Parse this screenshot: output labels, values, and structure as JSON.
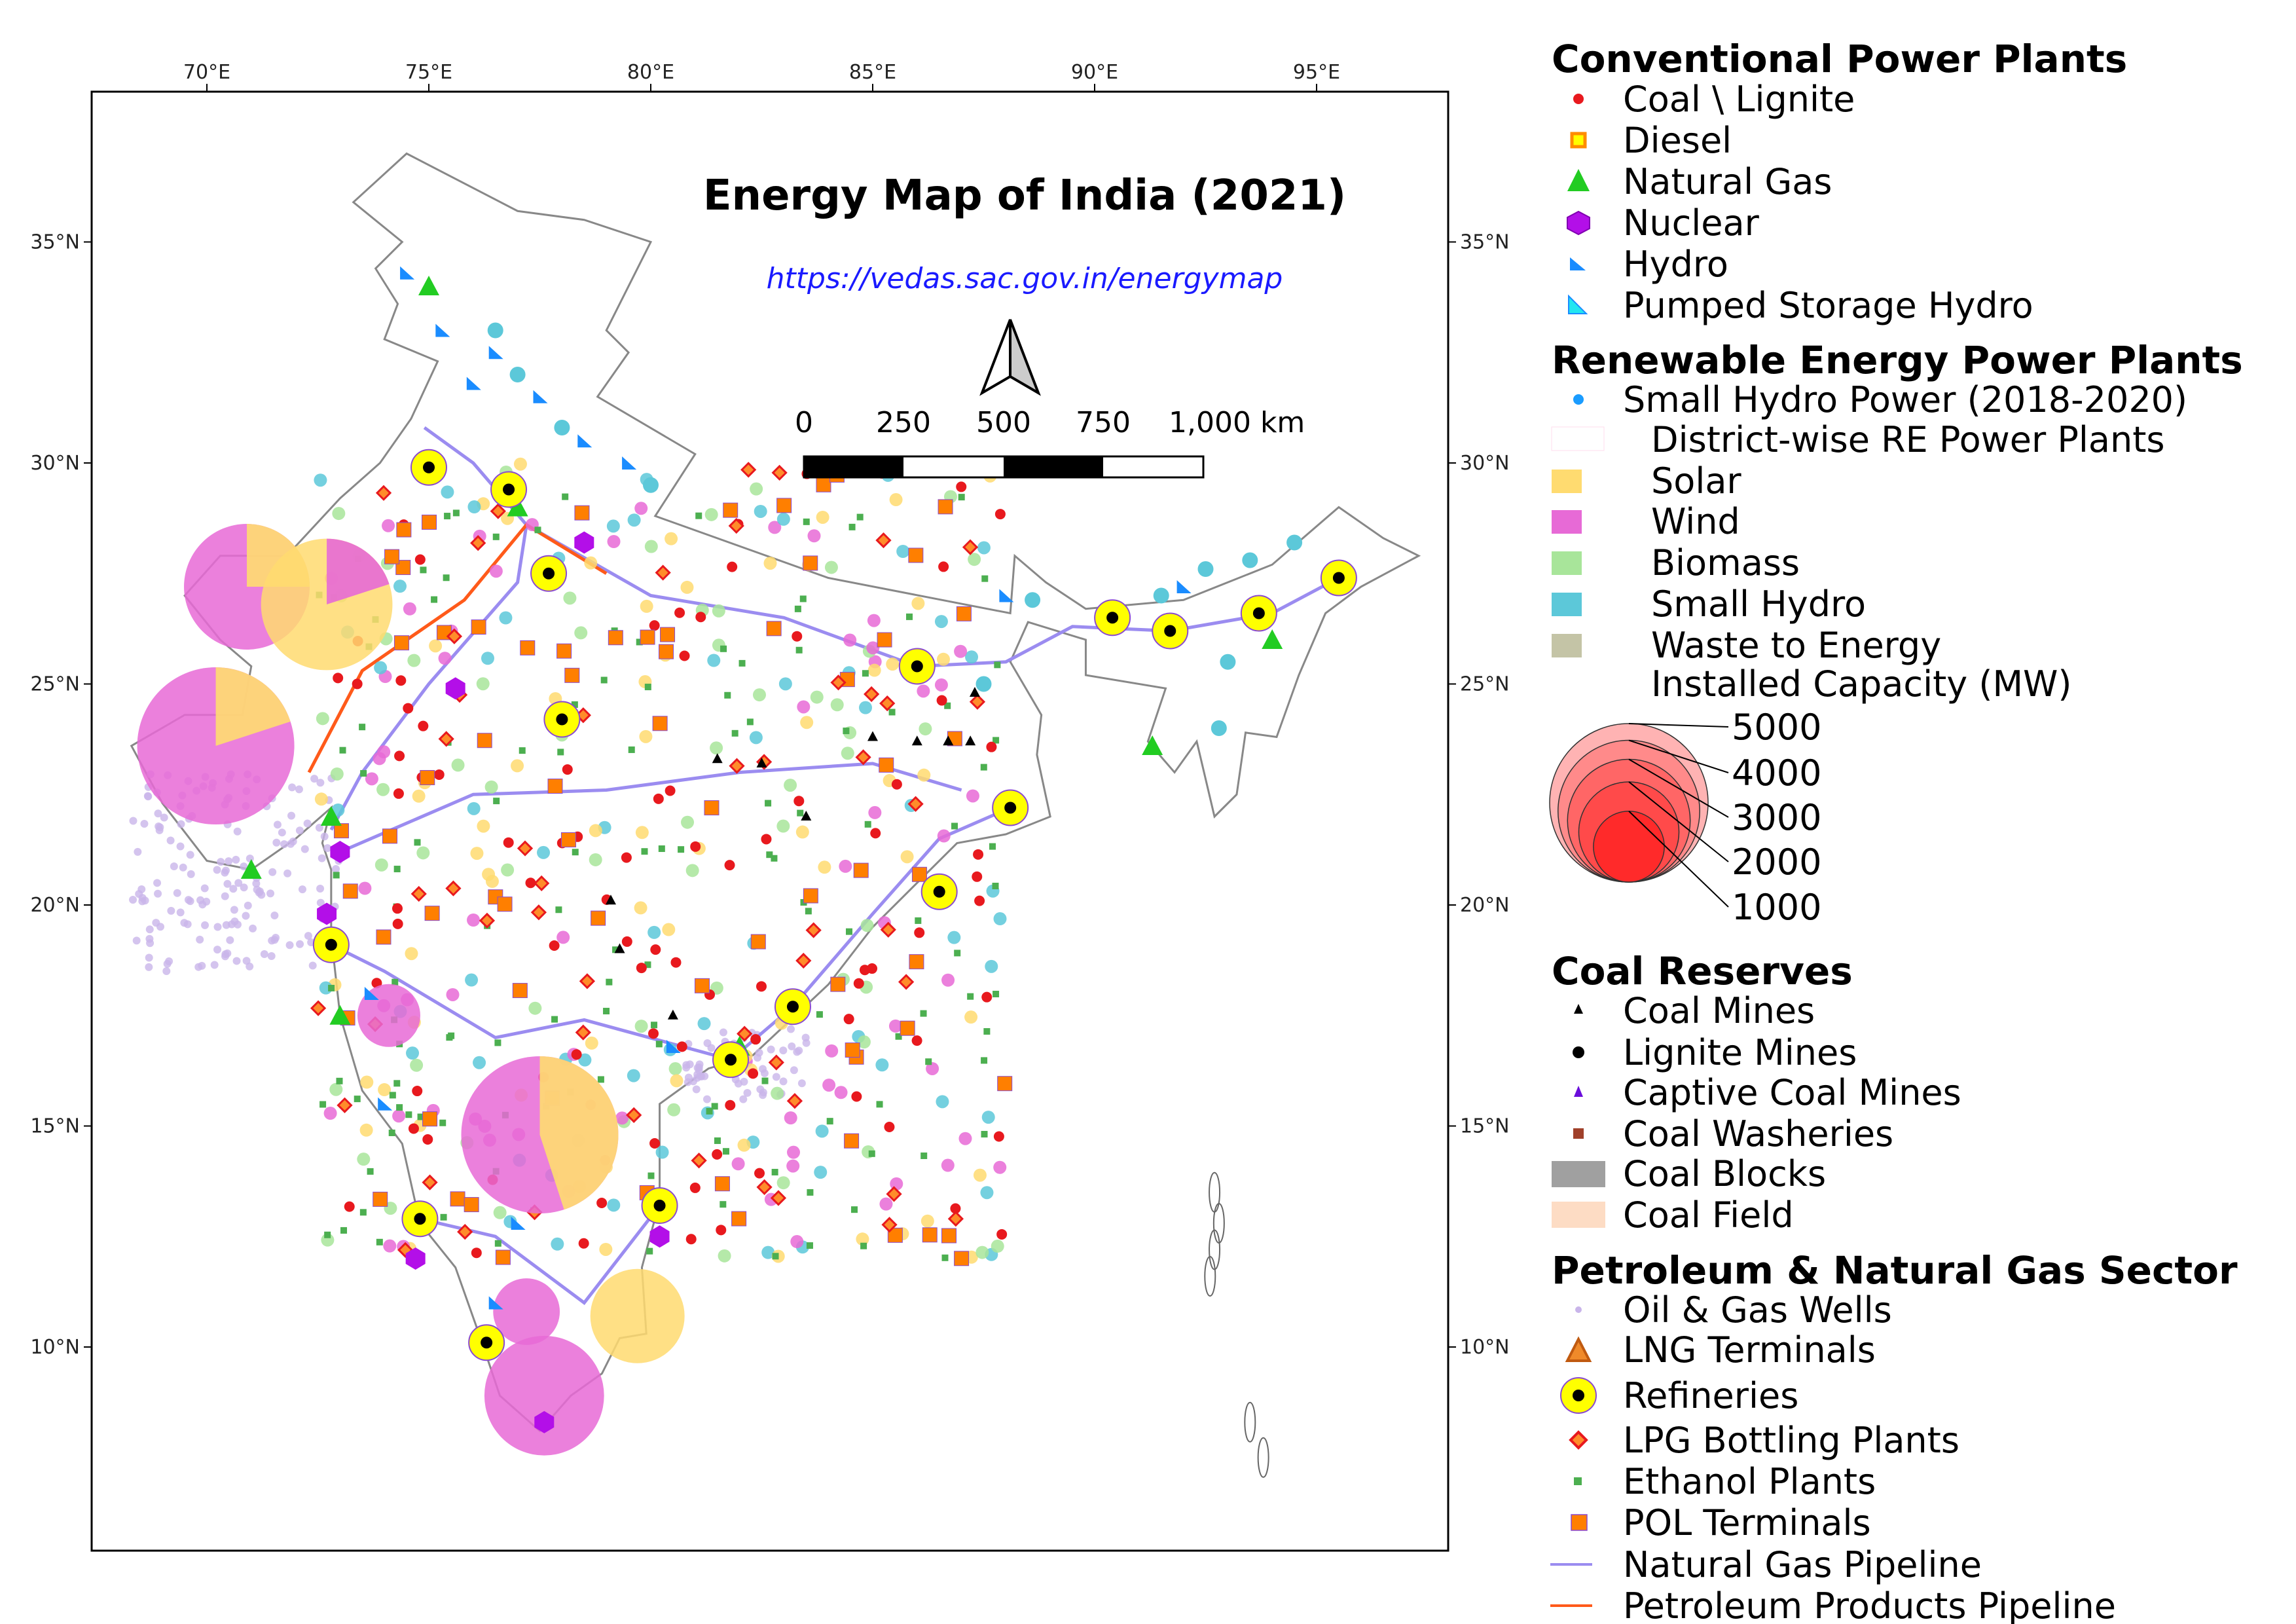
{
  "map": {
    "title": "Energy Map of India (2021)",
    "url": "https://vedas.sac.gov.in/energymap",
    "scale_bar": {
      "labels": [
        "0",
        "250",
        "500",
        "750",
        "1,000 km"
      ]
    },
    "lon_ticks": [
      "70°E",
      "75°E",
      "80°E",
      "85°E",
      "90°E",
      "95°E"
    ],
    "lat_ticks": [
      "35°N",
      "30°N",
      "25°N",
      "20°N",
      "15°N",
      "10°N"
    ],
    "colors": {
      "coal": "#e8191e",
      "diesel": "#ffd500",
      "natural_gas": "#22cc22",
      "nuclear": "#b30fe8",
      "hydro": "#1a8cff",
      "pumped_hydro": "#22e6f0",
      "small_hydro_point": "#1a9cff",
      "solar": "#ffdb70",
      "wind": "#e76ad6",
      "biomass": "#a8e59a",
      "small_hydro": "#5cc8d9",
      "waste": "#c4c4a6",
      "coal_blocks": "#a0a0a0",
      "coal_field": "#fddcc4",
      "oil_gas_wells": "#c9b5ea",
      "lng": "#f08a2a",
      "refinery": "#ffff00",
      "lpg": "#e8191e",
      "ethanol": "#4caf50",
      "pol": "#ff7f00",
      "gas_pipeline": "#9b8cf0",
      "petroleum_pipeline": "#ff5a1a"
    },
    "refineries": [
      [
        75.0,
        29.9
      ],
      [
        76.8,
        29.4
      ],
      [
        77.7,
        27.5
      ],
      [
        78.0,
        24.2
      ],
      [
        86.0,
        25.4
      ],
      [
        90.4,
        26.5
      ],
      [
        91.7,
        26.2
      ],
      [
        93.7,
        26.6
      ],
      [
        95.5,
        27.4
      ],
      [
        88.1,
        22.2
      ],
      [
        86.5,
        20.3
      ],
      [
        83.2,
        17.7
      ],
      [
        81.8,
        16.5
      ],
      [
        72.8,
        19.1
      ],
      [
        74.8,
        12.9
      ],
      [
        80.2,
        13.2
      ],
      [
        76.3,
        10.1
      ]
    ],
    "re_bubbles": [
      {
        "lon": 70.9,
        "lat": 27.2,
        "mw": 3200,
        "type": "wind",
        "solar_share": 0.25
      },
      {
        "lon": 72.7,
        "lat": 26.8,
        "mw": 3500,
        "type": "solar",
        "solar_share": 0.8
      },
      {
        "lon": 70.2,
        "lat": 23.6,
        "mw": 5000,
        "type": "wind",
        "solar_share": 0.2
      },
      {
        "lon": 77.5,
        "lat": 14.8,
        "mw": 5000,
        "type": "wind",
        "solar_share": 0.45
      },
      {
        "lon": 77.6,
        "lat": 8.9,
        "mw": 2900,
        "type": "wind",
        "solar_share": 0.0
      },
      {
        "lon": 79.7,
        "lat": 10.7,
        "mw": 1800,
        "type": "solar",
        "solar_share": 1.0
      },
      {
        "lon": 74.1,
        "lat": 17.5,
        "mw": 800,
        "type": "wind",
        "solar_share": 0.0
      },
      {
        "lon": 77.2,
        "lat": 10.8,
        "mw": 900,
        "type": "wind",
        "solar_share": 0.0
      }
    ],
    "coal_mines": [
      [
        85.0,
        23.8
      ],
      [
        86.0,
        23.7
      ],
      [
        86.7,
        23.7
      ],
      [
        87.2,
        23.7
      ],
      [
        81.5,
        23.3
      ],
      [
        82.5,
        23.2
      ],
      [
        79.1,
        20.1
      ],
      [
        79.3,
        19.0
      ],
      [
        80.5,
        17.5
      ],
      [
        83.5,
        22.0
      ],
      [
        87.3,
        24.8
      ]
    ],
    "hydro": [
      [
        74.5,
        34.3
      ],
      [
        75.3,
        33.0
      ],
      [
        76.5,
        32.5
      ],
      [
        77.5,
        31.5
      ],
      [
        78.5,
        30.5
      ],
      [
        79.5,
        30.0
      ],
      [
        76.0,
        31.8
      ],
      [
        92.0,
        27.2
      ],
      [
        74.0,
        15.5
      ],
      [
        76.5,
        11.0
      ],
      [
        73.7,
        18.0
      ],
      [
        77.0,
        12.8
      ],
      [
        80.5,
        16.8
      ],
      [
        88.0,
        27.0
      ]
    ],
    "nuclear": [
      [
        72.7,
        19.8
      ],
      [
        74.7,
        12.0
      ],
      [
        80.2,
        12.5
      ],
      [
        77.6,
        8.3
      ],
      [
        75.6,
        24.9
      ],
      [
        78.5,
        28.2
      ],
      [
        73.0,
        21.2
      ]
    ],
    "natural_gas": [
      [
        71.0,
        20.8
      ],
      [
        75.0,
        34.0
      ],
      [
        82.0,
        16.8
      ],
      [
        94.0,
        26.0
      ],
      [
        95.5,
        27.3
      ],
      [
        91.3,
        23.6
      ],
      [
        72.8,
        22.0
      ],
      [
        73.0,
        17.5
      ],
      [
        77.0,
        29.0
      ]
    ],
    "small_hydro_points": [
      [
        92.5,
        27.6
      ],
      [
        93.5,
        27.8
      ],
      [
        94.5,
        28.2
      ],
      [
        91.5,
        27.0
      ],
      [
        93.0,
        25.5
      ],
      [
        92.8,
        24.0
      ],
      [
        87.5,
        25.0
      ],
      [
        88.6,
        26.9
      ],
      [
        76.5,
        33.0
      ],
      [
        77.0,
        32.0
      ],
      [
        78.0,
        30.8
      ],
      [
        80.0,
        29.5
      ]
    ]
  },
  "legend": {
    "conventional": {
      "heading": "Conventional Power Plants",
      "items": [
        "Coal \\ Lignite",
        "Diesel",
        "Natural Gas",
        "Nuclear",
        "Hydro",
        "Pumped Storage Hydro"
      ]
    },
    "renewable": {
      "heading": "Renewable Energy Power Plants",
      "small_hydro_power": "Small Hydro Power (2018-2020)",
      "district_wise": "District-wise RE Power Plants",
      "items": [
        "Solar",
        "Wind",
        "Biomass",
        "Small Hydro",
        "Waste to Energy"
      ],
      "capacity_title": "Installed Capacity (MW)",
      "capacity_values": [
        "5000",
        "4000",
        "3000",
        "2000",
        "1000"
      ]
    },
    "coal": {
      "heading": "Coal Reserves",
      "items": [
        "Coal Mines",
        "Lignite Mines",
        "Captive Coal Mines",
        "Coal Washeries",
        "Coal Blocks",
        "Coal Field"
      ]
    },
    "petroleum": {
      "heading": "Petroleum & Natural Gas Sector",
      "items": [
        "Oil & Gas Wells",
        "LNG Terminals",
        "Refineries",
        "LPG Bottling Plants",
        "Ethanol Plants",
        "POL Terminals",
        "Natural Gas Pipeline",
        "Petroleum Products Pipeline"
      ]
    }
  }
}
